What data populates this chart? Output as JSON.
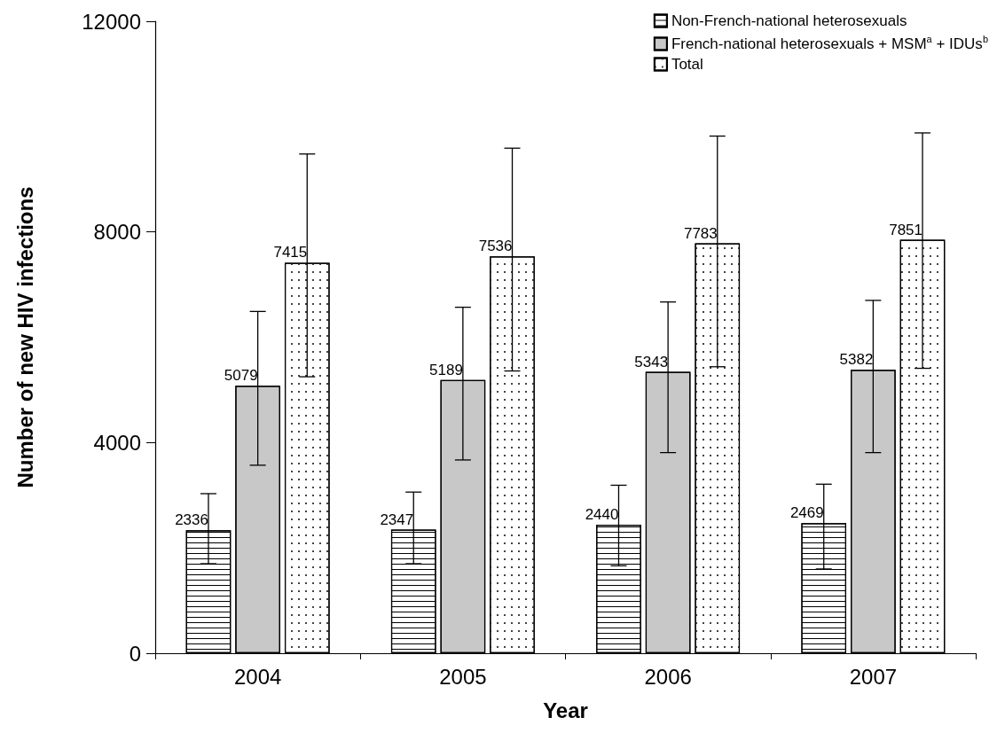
{
  "chart_data": {
    "type": "bar",
    "xlabel": "Year",
    "ylabel": "Number of new HIV infections",
    "categories": [
      "2004",
      "2005",
      "2006",
      "2007"
    ],
    "series": [
      {
        "name": "Non-French-national heterosexuals",
        "color": "#ffffff",
        "values": [
          2336,
          2347,
          2440,
          2469
        ],
        "errors": [
          [
            1700,
            3030
          ],
          [
            1700,
            3060
          ],
          [
            1660,
            3190
          ],
          [
            1600,
            3210
          ]
        ]
      },
      {
        "name": "French-national heterosexuals + MSM$^{a}$ + IDUs$^{b}$",
        "color": "#c8c8c8",
        "values": [
          5079,
          5189,
          5343,
          5382
        ],
        "errors": [
          [
            3570,
            6490
          ],
          [
            3670,
            6570
          ],
          [
            3810,
            6670
          ],
          [
            3810,
            6700
          ]
        ]
      },
      {
        "name": "Total",
        "color": "#ffffff",
        "values": [
          7415,
          7536,
          7783,
          7851
        ],
        "errors": [
          [
            5250,
            9480
          ],
          [
            5360,
            9590
          ],
          [
            5440,
            9820
          ],
          [
            5410,
            9880
          ]
        ]
      }
    ],
    "ylim": [
      0,
      12000
    ],
    "yticks": [
      0,
      4000,
      8000,
      12000
    ],
    "grid": false,
    "legend": "top right",
    "data_labels": true
  }
}
